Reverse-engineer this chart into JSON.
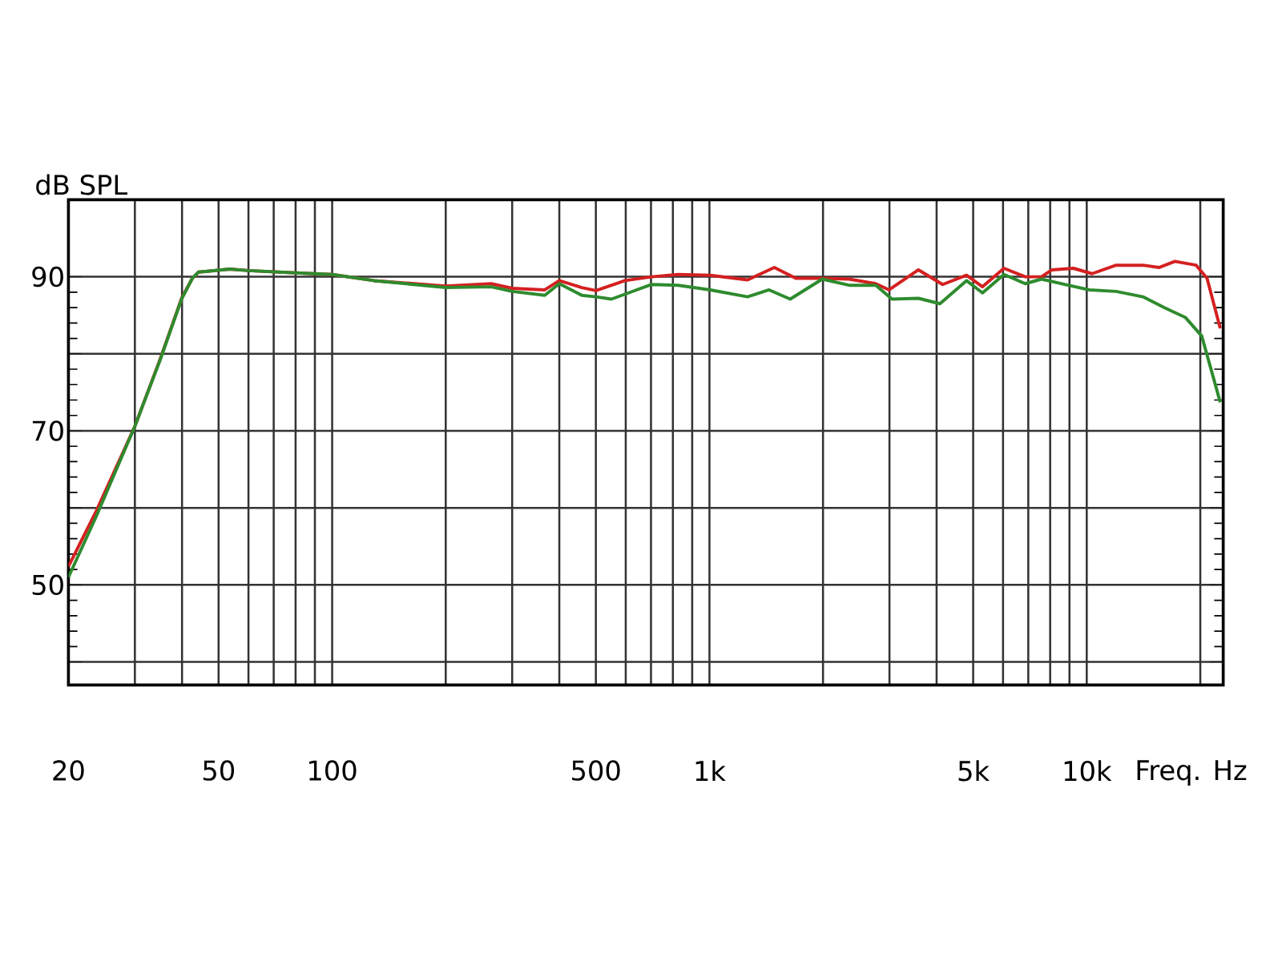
{
  "chart_data": {
    "type": "line",
    "xlabel": "Freq. Hz",
    "ylabel": "dB SPL",
    "xlim": [
      20,
      23000
    ],
    "ylim": [
      37,
      100
    ],
    "xticks": [
      20,
      {
        "value": 30,
        "label": null
      },
      {
        "value": 40,
        "label": null
      },
      50,
      {
        "value": 60,
        "label": null
      },
      {
        "value": 70,
        "label": null
      },
      {
        "value": 80,
        "label": null
      },
      {
        "value": 90,
        "label": null
      },
      100,
      {
        "value": 200,
        "label": null
      },
      {
        "value": 300,
        "label": null
      },
      {
        "value": 400,
        "label": null
      },
      500,
      {
        "value": 600,
        "label": null
      },
      {
        "value": 700,
        "label": null
      },
      {
        "value": 800,
        "label": null
      },
      {
        "value": 900,
        "label": null
      },
      {
        "value": 1000,
        "label": "1k"
      },
      {
        "value": 2000,
        "label": null
      },
      {
        "value": 3000,
        "label": null
      },
      {
        "value": 4000,
        "label": null
      },
      {
        "value": 5000,
        "label": "5k"
      },
      {
        "value": 6000,
        "label": null
      },
      {
        "value": 7000,
        "label": null
      },
      {
        "value": 8000,
        "label": null
      },
      {
        "value": 9000,
        "label": null
      },
      {
        "value": 10000,
        "label": "10k"
      },
      {
        "value": 20000,
        "label": null
      }
    ],
    "yticks": [
      {
        "value": 40,
        "label": null
      },
      50,
      {
        "value": 60,
        "label": null
      },
      70,
      {
        "value": 80,
        "label": null
      },
      90
    ],
    "log": "x",
    "grid": true,
    "marker": "none",
    "line_style": "solid",
    "series": [
      {
        "color": "#d42020",
        "x": [
          20,
          23.7,
          30,
          35,
          39.9,
          42.6,
          44.2,
          53.5,
          60,
          80,
          100,
          129,
          200,
          264,
          300,
          366,
          400,
          459,
          500,
          597,
          703,
          826,
          1005,
          1262,
          1486,
          1694,
          1991,
          2344,
          2761,
          2993,
          3581,
          4150,
          4801,
          5293,
          6034,
          6875,
          7585,
          8091,
          9219,
          10330,
          11960,
          14090,
          15530,
          17130,
          19500,
          20840,
          22590
        ],
        "values": [
          52.4,
          59.6,
          70.6,
          79.3,
          87.2,
          89.8,
          90.6,
          91.0,
          90.8,
          90.5,
          90.3,
          89.5,
          88.8,
          89.1,
          88.5,
          88.3,
          89.5,
          88.6,
          88.2,
          89.5,
          90.0,
          90.3,
          90.2,
          89.6,
          91.2,
          89.8,
          89.8,
          89.7,
          89.1,
          88.3,
          90.9,
          89.0,
          90.2,
          88.7,
          91.1,
          90.0,
          90.0,
          90.9,
          91.1,
          90.4,
          91.5,
          91.5,
          91.2,
          92.0,
          91.5,
          89.8,
          83.3
        ]
      },
      {
        "color": "#2e8b2e",
        "x": [
          20,
          23.7,
          30,
          35,
          39.9,
          42.6,
          44.2,
          53.5,
          60,
          80,
          100,
          129,
          200,
          264,
          300,
          366,
          400,
          459,
          500,
          550,
          703,
          826,
          1005,
          1262,
          1439,
          1637,
          1991,
          2344,
          2761,
          3047,
          3581,
          4083,
          4801,
          5293,
          6034,
          6875,
          7585,
          8926,
          10170,
          11960,
          14090,
          16040,
          18280,
          20180,
          22590
        ],
        "values": [
          51.0,
          58.9,
          70.6,
          79.2,
          87.1,
          89.8,
          90.6,
          91.0,
          90.8,
          90.5,
          90.3,
          89.5,
          88.6,
          88.7,
          88.1,
          87.6,
          89.1,
          87.6,
          87.4,
          87.1,
          89.0,
          88.9,
          88.3,
          87.4,
          88.3,
          87.1,
          89.7,
          88.9,
          88.9,
          87.1,
          87.2,
          86.5,
          89.5,
          87.9,
          90.3,
          89.1,
          89.7,
          88.9,
          88.3,
          88.1,
          87.4,
          86.0,
          84.7,
          82.3,
          73.7
        ]
      }
    ]
  }
}
